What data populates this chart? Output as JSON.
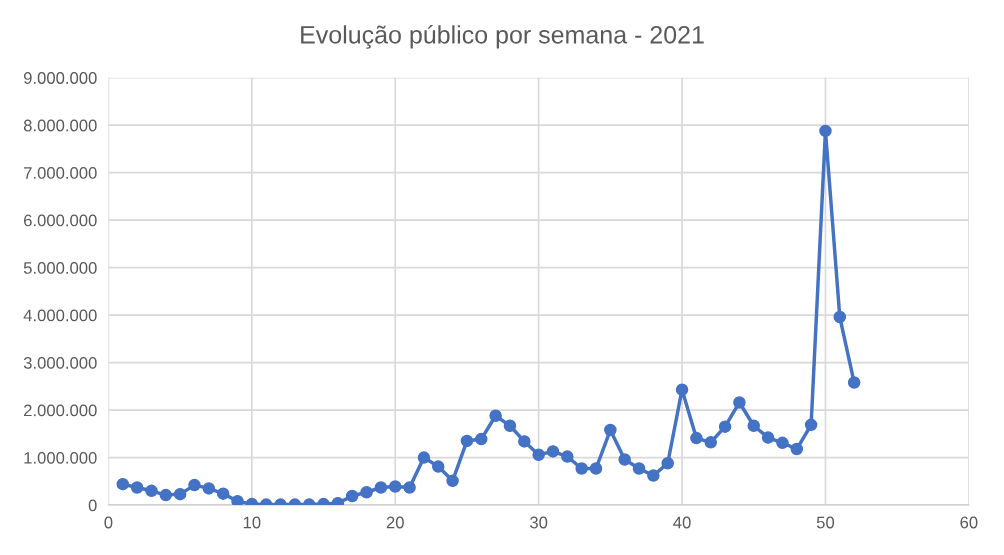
{
  "chart_data": {
    "type": "line",
    "title": "Evolução público por semana - 2021",
    "x": [
      1,
      2,
      3,
      4,
      5,
      6,
      7,
      8,
      9,
      10,
      11,
      12,
      13,
      14,
      15,
      16,
      17,
      18,
      19,
      20,
      21,
      22,
      23,
      24,
      25,
      26,
      27,
      28,
      29,
      30,
      31,
      32,
      33,
      34,
      35,
      36,
      37,
      38,
      39,
      40,
      41,
      42,
      43,
      44,
      45,
      46,
      47,
      48,
      49,
      50,
      51,
      52
    ],
    "series": [
      {
        "color": "#4472c4",
        "values": [
          440000,
          370000,
          300000,
          210000,
          230000,
          420000,
          350000,
          240000,
          80000,
          20000,
          10000,
          10000,
          10000,
          10000,
          20000,
          40000,
          190000,
          270000,
          370000,
          390000,
          370000,
          1000000,
          810000,
          510000,
          1350000,
          1390000,
          1880000,
          1670000,
          1340000,
          1060000,
          1130000,
          1020000,
          770000,
          770000,
          1580000,
          960000,
          770000,
          620000,
          880000,
          2430000,
          1410000,
          1320000,
          1650000,
          2160000,
          1670000,
          1420000,
          1310000,
          1180000,
          1690000,
          7880000,
          3960000,
          2580000
        ]
      }
    ],
    "xlim": [
      0,
      60
    ],
    "xticks": [
      0,
      10,
      20,
      30,
      40,
      50,
      60
    ],
    "ylim": [
      0,
      9000000
    ],
    "yticks": [
      {
        "value": 0,
        "label": "0"
      },
      {
        "value": 1000000,
        "label": "1.000.000"
      },
      {
        "value": 2000000,
        "label": "2.000.000"
      },
      {
        "value": 3000000,
        "label": "3.000.000"
      },
      {
        "value": 4000000,
        "label": "4.000.000"
      },
      {
        "value": 5000000,
        "label": "5.000.000"
      },
      {
        "value": 6000000,
        "label": "6.000.000"
      },
      {
        "value": 7000000,
        "label": "7.000.000"
      },
      {
        "value": 8000000,
        "label": "8.000.000"
      },
      {
        "value": 9000000,
        "label": "9.000.000"
      }
    ],
    "grid": true,
    "marker": "circle",
    "line_style": "solid"
  }
}
